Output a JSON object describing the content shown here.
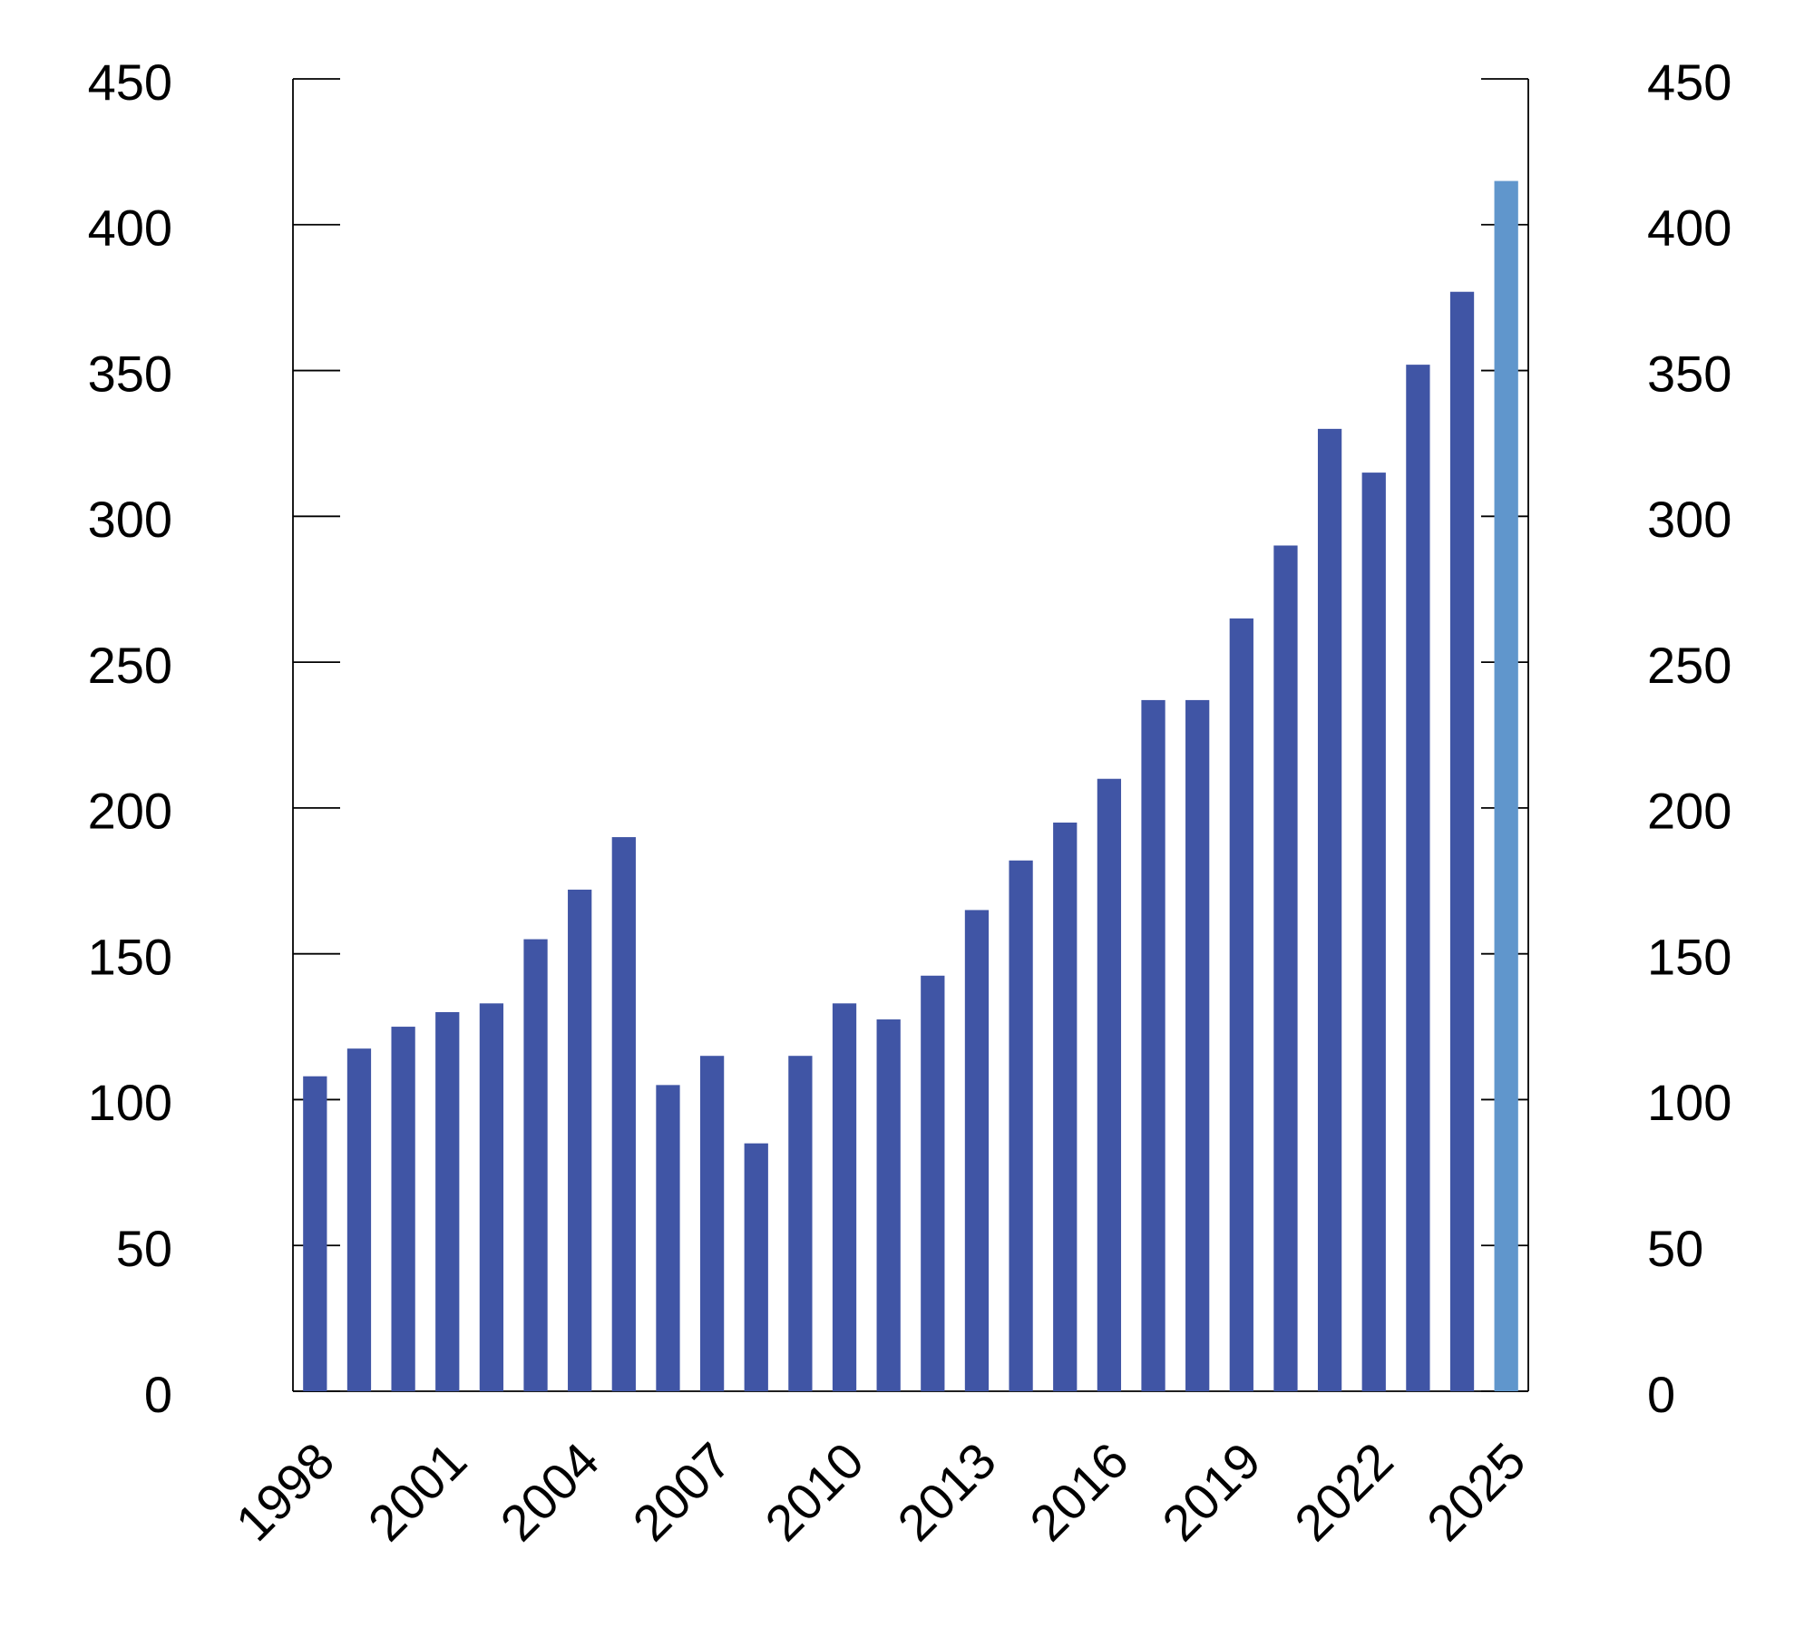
{
  "chart_data": {
    "type": "bar",
    "categories": [
      "1998",
      null,
      null,
      "2001",
      null,
      null,
      "2004",
      null,
      null,
      "2007",
      null,
      null,
      "2010",
      null,
      null,
      "2013",
      null,
      null,
      "2016",
      null,
      null,
      "2019",
      null,
      null,
      "2022",
      null,
      null,
      "2025"
    ],
    "values": [
      108,
      117.5,
      125,
      130,
      133,
      155,
      172,
      190,
      105,
      115,
      85,
      115,
      133,
      127.5,
      142.5,
      165,
      182,
      195,
      210,
      237,
      237,
      265,
      290,
      330,
      315,
      352,
      377,
      415
    ],
    "colors": [
      "#4055a5",
      "#4055a5",
      "#4055a5",
      "#4055a5",
      "#4055a5",
      "#4055a5",
      "#4055a5",
      "#4055a5",
      "#4055a5",
      "#4055a5",
      "#4055a5",
      "#4055a5",
      "#4055a5",
      "#4055a5",
      "#4055a5",
      "#4055a5",
      "#4055a5",
      "#4055a5",
      "#4055a5",
      "#4055a5",
      "#4055a5",
      "#4055a5",
      "#4055a5",
      "#4055a5",
      "#4055a5",
      "#4055a5",
      "#4055a5",
      "#6096cc"
    ],
    "ylim": [
      0,
      450
    ],
    "yticks": [
      0,
      50,
      100,
      150,
      200,
      250,
      300,
      350,
      400,
      450
    ],
    "y2lim": [
      0,
      450
    ],
    "y2ticks": [
      0,
      50,
      100,
      150,
      200,
      250,
      300,
      350,
      400,
      450
    ],
    "grid": false
  }
}
